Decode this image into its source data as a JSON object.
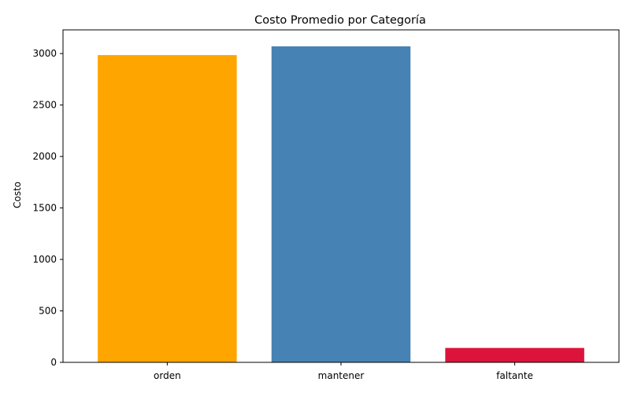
{
  "chart_data": {
    "type": "bar",
    "title": "Costo Promedio por Categoría",
    "xlabel": "",
    "ylabel": "Costo",
    "categories": [
      "orden",
      "mantener",
      "faltante"
    ],
    "values": [
      2985,
      3070,
      140
    ],
    "colors": [
      "#FFA500",
      "#4682B4",
      "#DC143C"
    ],
    "ylim": [
      0,
      3230
    ],
    "yticks": [
      0,
      500,
      1000,
      1500,
      2000,
      2500,
      3000
    ],
    "ytick_labels": [
      "0",
      "500",
      "1000",
      "1500",
      "2000",
      "2500",
      "3000"
    ],
    "grid": false,
    "legend": "none"
  }
}
